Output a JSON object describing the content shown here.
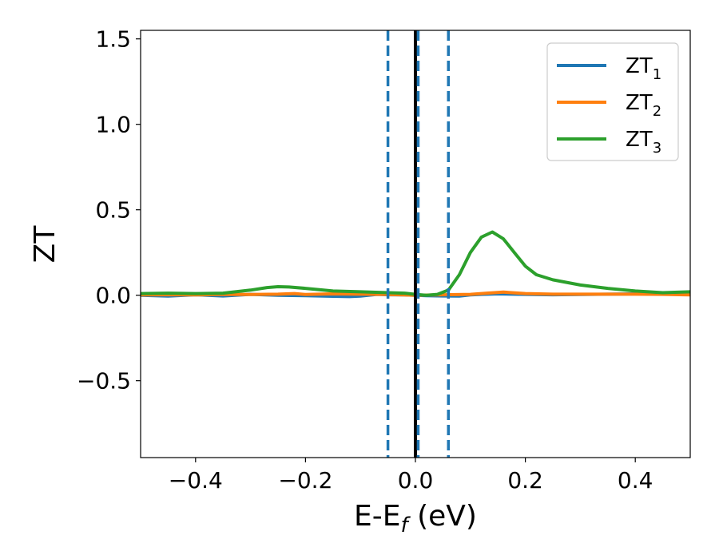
{
  "chart_data": {
    "type": "line",
    "xlabel_main": "E-E",
    "xlabel_sub": "f",
    "xlabel_unit": " (eV)",
    "ylabel": "ZT",
    "xlim": [
      -0.5,
      0.5
    ],
    "ylim": [
      -0.95,
      1.55
    ],
    "xticks": [
      -0.4,
      -0.2,
      0.0,
      0.2,
      0.4
    ],
    "xtick_labels": [
      "−0.4",
      "−0.2",
      "0.0",
      "0.2",
      "0.4"
    ],
    "yticks": [
      -0.5,
      0.0,
      0.5,
      1.0,
      1.5
    ],
    "ytick_labels": [
      "−0.5",
      "0.0",
      "0.5",
      "1.0",
      "1.5"
    ],
    "vlines": [
      {
        "name": "fermi-level",
        "x": 0.0,
        "color": "#000000",
        "style": "solid"
      },
      {
        "name": "dashed-left",
        "x": -0.05,
        "color": "#1f77b4",
        "style": "dashed"
      },
      {
        "name": "dashed-center",
        "x": 0.005,
        "color": "#1f77b4",
        "style": "dashed"
      },
      {
        "name": "dashed-right",
        "x": 0.06,
        "color": "#1f77b4",
        "style": "dashed"
      }
    ],
    "series": [
      {
        "name": "ZT",
        "sub": "1",
        "color": "#1f77b4",
        "x": [
          -0.5,
          -0.45,
          -0.4,
          -0.35,
          -0.3,
          -0.25,
          -0.2,
          -0.15,
          -0.12,
          -0.1,
          -0.07,
          -0.05,
          -0.02,
          0.0,
          0.02,
          0.05,
          0.08,
          0.1,
          0.12,
          0.15,
          0.2,
          0.25,
          0.3,
          0.35,
          0.4,
          0.45,
          0.5
        ],
        "y": [
          0.0,
          -0.005,
          0.003,
          -0.004,
          0.005,
          0.0,
          -0.003,
          -0.006,
          -0.008,
          -0.005,
          0.005,
          0.003,
          0.002,
          0.0,
          -0.003,
          -0.004,
          -0.005,
          0.002,
          0.005,
          0.008,
          0.005,
          0.003,
          0.004,
          0.006,
          0.008,
          0.01,
          0.01
        ]
      },
      {
        "name": "ZT",
        "sub": "2",
        "color": "#ff7f0e",
        "x": [
          -0.5,
          -0.45,
          -0.4,
          -0.35,
          -0.3,
          -0.25,
          -0.22,
          -0.2,
          -0.15,
          -0.1,
          -0.05,
          0.0,
          0.05,
          0.1,
          0.13,
          0.16,
          0.2,
          0.25,
          0.3,
          0.35,
          0.4,
          0.45,
          0.5
        ],
        "y": [
          0.002,
          0.003,
          0.002,
          0.005,
          0.004,
          0.006,
          0.01,
          0.004,
          0.008,
          0.006,
          0.004,
          0.0,
          0.003,
          0.005,
          0.012,
          0.018,
          0.01,
          0.006,
          0.006,
          0.006,
          0.006,
          0.005,
          0.002
        ]
      },
      {
        "name": "ZT",
        "sub": "3",
        "color": "#2ca02c",
        "x": [
          -0.5,
          -0.45,
          -0.4,
          -0.35,
          -0.3,
          -0.27,
          -0.25,
          -0.23,
          -0.2,
          -0.15,
          -0.1,
          -0.05,
          -0.02,
          0.0,
          0.02,
          0.04,
          0.06,
          0.08,
          0.1,
          0.12,
          0.14,
          0.16,
          0.18,
          0.2,
          0.22,
          0.25,
          0.3,
          0.35,
          0.4,
          0.45,
          0.5
        ],
        "y": [
          0.01,
          0.012,
          0.01,
          0.012,
          0.03,
          0.045,
          0.05,
          0.048,
          0.04,
          0.025,
          0.02,
          0.015,
          0.012,
          0.005,
          0.0,
          0.005,
          0.03,
          0.12,
          0.25,
          0.34,
          0.37,
          0.33,
          0.25,
          0.17,
          0.12,
          0.09,
          0.06,
          0.04,
          0.025,
          0.015,
          0.02
        ]
      }
    ]
  }
}
